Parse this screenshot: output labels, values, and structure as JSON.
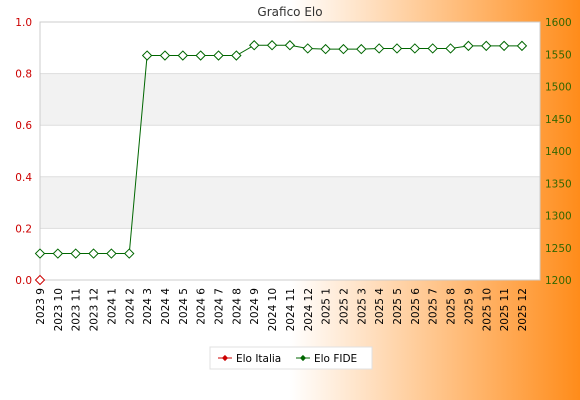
{
  "chart_data": {
    "type": "line",
    "title": "Grafico Elo",
    "xlabel": "",
    "ylabel_left": "",
    "ylabel_right": "",
    "categories": [
      "2023 9",
      "2023 10",
      "2023 11",
      "2023 12",
      "2024 1",
      "2024 2",
      "2024 3",
      "2024 4",
      "2024 5",
      "2024 6",
      "2024 7",
      "2024 8",
      "2024 9",
      "2024 10",
      "2024 11",
      "2024 12",
      "2025 1",
      "2025 2",
      "2025 3",
      "2025 4",
      "2025 5",
      "2025 6",
      "2025 7",
      "2025 8",
      "2025 9",
      "2025 10",
      "2025 11",
      "2025 12"
    ],
    "left_axis": {
      "ylim": [
        0,
        1
      ],
      "ticks": [
        "0.0",
        "0.2",
        "0.4",
        "0.6",
        "0.8",
        "1.0"
      ],
      "color": "#cc0000"
    },
    "right_axis": {
      "ylim": [
        1200,
        1600
      ],
      "ticks": [
        "1200",
        "1250",
        "1300",
        "1350",
        "1400",
        "1450",
        "1500",
        "1550",
        "1600"
      ],
      "color": "#336600"
    },
    "series": [
      {
        "name": "Elo Italia",
        "axis": "left",
        "color": "#cc0000",
        "values": [
          0,
          null,
          null,
          null,
          null,
          null,
          null,
          null,
          null,
          null,
          null,
          null,
          null,
          null,
          null,
          null,
          null,
          null,
          null,
          null,
          null,
          null,
          null,
          null,
          null,
          null,
          null,
          null
        ]
      },
      {
        "name": "Elo FIDE",
        "axis": "right",
        "color": "#006600",
        "values": [
          1241,
          1241,
          1241,
          1241,
          1241,
          1241,
          1548,
          1548,
          1548,
          1548,
          1548,
          1548,
          1564,
          1564,
          1564,
          1559,
          1558,
          1558,
          1558,
          1559,
          1559,
          1559,
          1559,
          1559,
          1563,
          1563,
          1563,
          1563
        ]
      }
    ],
    "grid": true,
    "legend_position": "bottom",
    "background_gradient": [
      "#ffffff",
      "#ff8c1a"
    ]
  }
}
